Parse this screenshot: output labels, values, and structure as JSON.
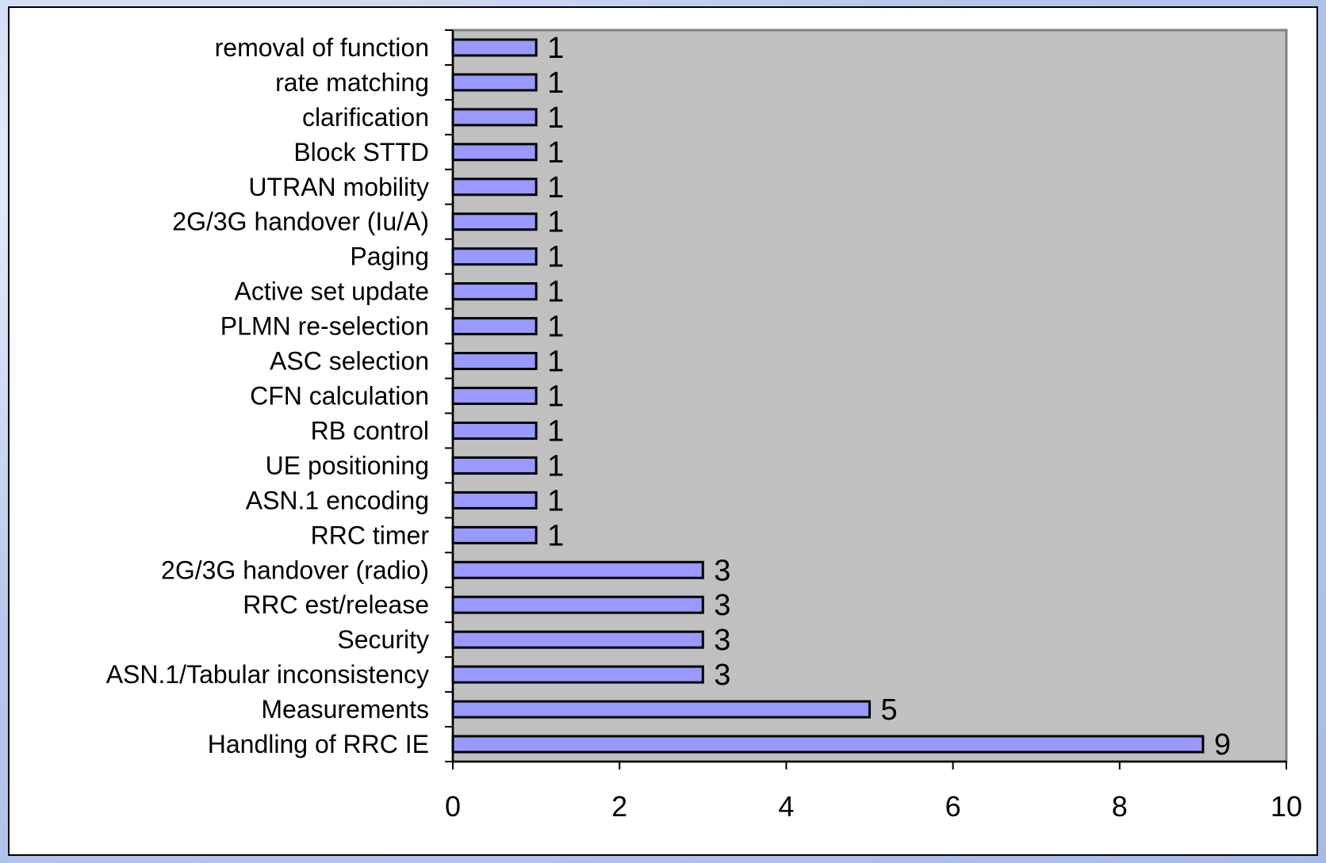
{
  "chart_data": {
    "type": "bar",
    "orientation": "horizontal",
    "categories": [
      "removal of function",
      "rate matching",
      "clarification",
      "Block STTD",
      "UTRAN mobility",
      "2G/3G handover (Iu/A)",
      "Paging",
      "Active set update",
      "PLMN re-selection",
      "ASC selection",
      "CFN calculation",
      "RB control",
      "UE positioning",
      "ASN.1 encoding",
      "RRC timer",
      "2G/3G handover (radio)",
      "RRC est/release",
      "Security",
      "ASN.1/Tabular inconsistency",
      "Measurements",
      "Handling of RRC IE"
    ],
    "values": [
      1,
      1,
      1,
      1,
      1,
      1,
      1,
      1,
      1,
      1,
      1,
      1,
      1,
      1,
      1,
      3,
      3,
      3,
      3,
      5,
      9
    ],
    "data_labels": [
      "1",
      "1",
      "1",
      "1",
      "1",
      "1",
      "1",
      "1",
      "1",
      "1",
      "1",
      "1",
      "1",
      "1",
      "1",
      "3",
      "3",
      "3",
      "3",
      "5",
      "9"
    ],
    "xlim": [
      0,
      10
    ],
    "x_ticks": [
      "0",
      "2",
      "4",
      "6",
      "8",
      "10"
    ],
    "title": "",
    "xlabel": "",
    "ylabel": "",
    "grid": false,
    "legend": "none",
    "colors": {
      "bar_fill": "#9999ff",
      "bar_stroke": "#000000",
      "plot_background": "#c0c0c0",
      "plot_border": "#808080"
    }
  }
}
